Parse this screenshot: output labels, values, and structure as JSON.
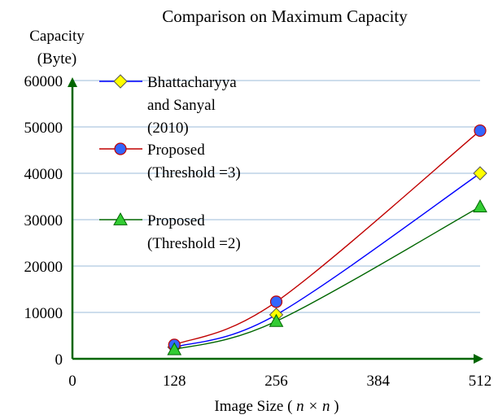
{
  "chart_data": {
    "type": "line",
    "title": "Comparison on Maximum Capacity",
    "ylabel_line1": "Capacity",
    "ylabel_line2": "(Byte)",
    "xlabel_prefix": "Image Size ( ",
    "xlabel_math": "n × n",
    "xlabel_suffix": " )",
    "xlim": [
      0,
      512
    ],
    "ylim": [
      0,
      60000
    ],
    "x_ticks": [
      0,
      128,
      256,
      384,
      512
    ],
    "x_tick_labels": [
      "0",
      "128",
      "256",
      "384",
      "512"
    ],
    "y_ticks": [
      0,
      10000,
      20000,
      30000,
      40000,
      50000,
      60000
    ],
    "y_tick_labels": [
      "0",
      "10000",
      "20000",
      "30000",
      "40000",
      "50000",
      "60000"
    ],
    "grid": "horizontal",
    "legend_position": "top-left",
    "series": [
      {
        "name": "Bhattacharyya and Sanyal (2010)",
        "legend_lines": [
          "Bhattacharyya",
          "and Sanyal",
          "(2010)"
        ],
        "x": [
          128,
          256,
          512
        ],
        "values": [
          2500,
          9500,
          40000
        ],
        "line_color": "#0000ff",
        "marker": "diamond",
        "marker_color": "#ffff00"
      },
      {
        "name": "Proposed (Threshold =3)",
        "legend_lines": [
          "Proposed",
          "(Threshold =3)"
        ],
        "x": [
          128,
          256,
          512
        ],
        "values": [
          3000,
          12300,
          49200
        ],
        "line_color": "#c00000",
        "marker": "circle",
        "marker_color": "#3366ff"
      },
      {
        "name": "Proposed (Threshold =2)",
        "legend_lines": [
          "Proposed",
          "(Threshold =2)"
        ],
        "x": [
          128,
          256,
          512
        ],
        "values": [
          2000,
          8100,
          32800
        ],
        "line_color": "#006600",
        "marker": "triangle",
        "marker_color": "#33cc33"
      }
    ],
    "colors": {
      "axis": "#006600",
      "grid": "#9bbbd9"
    }
  }
}
